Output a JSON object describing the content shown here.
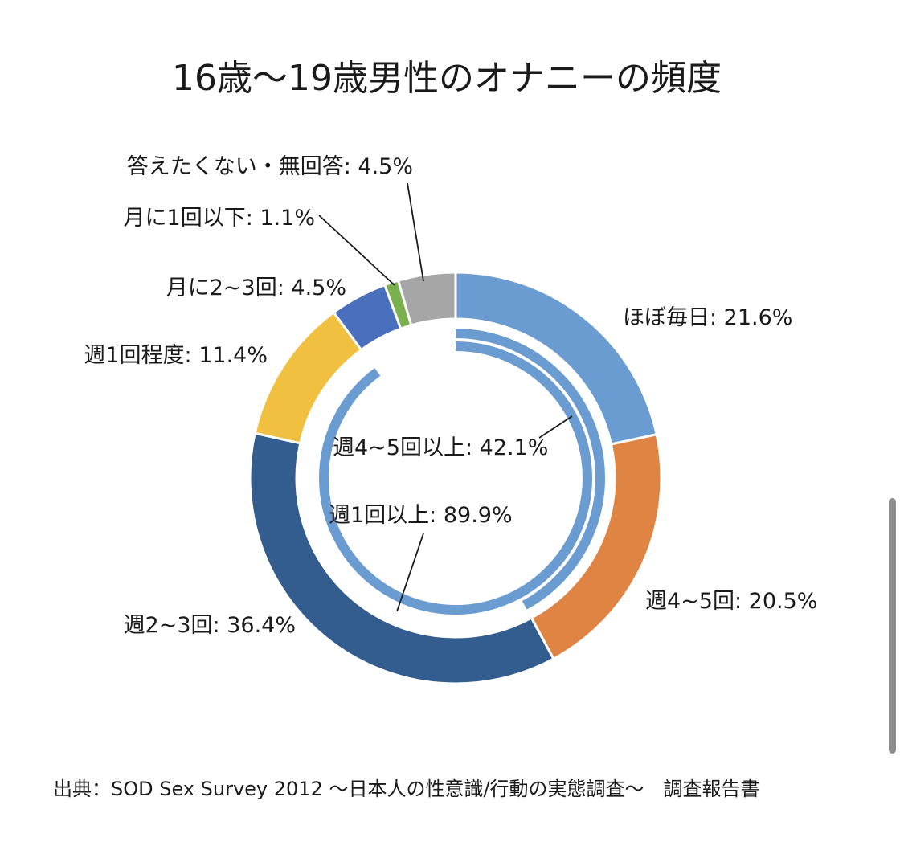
{
  "chart_data": {
    "type": "donut",
    "title": "16歳～19歳男性のオナニーの頻度",
    "source": "出典：SOD Sex Survey 2012 ～日本人の性意識/行動の実態調査～　調査報告書",
    "series": [
      {
        "name": "ほぼ毎日",
        "value": 21.6,
        "label": "ほぼ毎日: 21.6%",
        "color": "#6a9bd1"
      },
      {
        "name": "週4~5回",
        "value": 20.5,
        "label": "週4~5回: 20.5%",
        "color": "#e08444"
      },
      {
        "name": "週2~3回",
        "value": 36.4,
        "label": "週2~3回: 36.4%",
        "color": "#335d8e"
      },
      {
        "name": "週1回程度",
        "value": 11.4,
        "label": "週1回程度: 11.4%",
        "color": "#f2c040"
      },
      {
        "name": "月に2~3回",
        "value": 4.5,
        "label": "月に2~3回: 4.5%",
        "color": "#4a6fbd"
      },
      {
        "name": "月に1回以下",
        "value": 1.1,
        "label": "月に1回以下: 1.1%",
        "color": "#7bb04e"
      },
      {
        "name": "答えたくない・無回答",
        "value": 4.5,
        "label": "答えたくない・無回答: 4.5%",
        "color": "#a6a6a6"
      }
    ],
    "summary_arcs": [
      {
        "name": "週4~5回以上",
        "value": 42.1,
        "label": "週4~5回以上: 42.1%",
        "color": "#6a9bd1"
      },
      {
        "name": "週1回以上",
        "value": 89.9,
        "label": "週1回以上: 89.9%",
        "color": "#6a9bd1"
      }
    ]
  }
}
